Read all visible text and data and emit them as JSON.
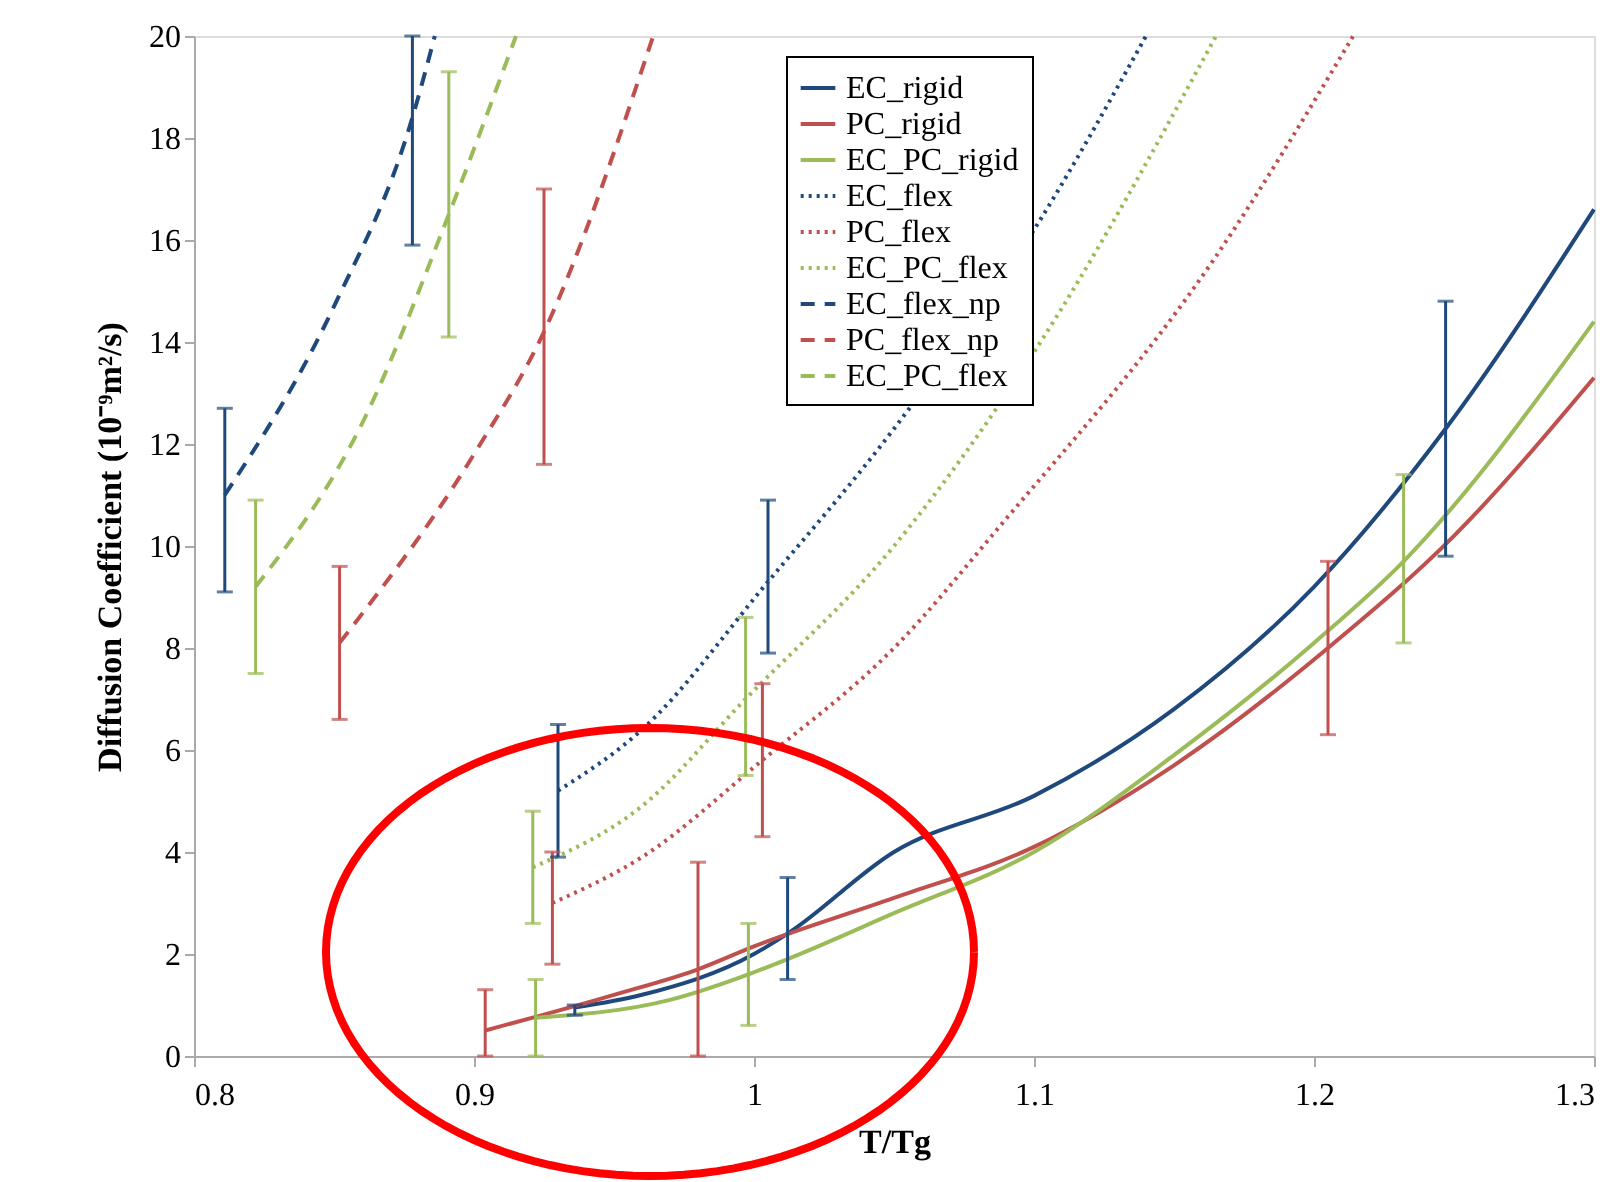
{
  "chart_data": {
    "type": "line",
    "xlabel": "T/Tg",
    "ylabel": "Diffusion Coefficient (10⁻⁹m²/s)",
    "xlim": [
      0.8,
      1.3
    ],
    "xticks": [
      0.8,
      0.9,
      1,
      1.1,
      1.2,
      1.3
    ],
    "ylim": [
      0,
      20
    ],
    "yticks": [
      0,
      2,
      4,
      6,
      8,
      10,
      12,
      14,
      16,
      18,
      20
    ],
    "grid": false,
    "legend": "top right",
    "marker": "none",
    "series": [
      {
        "name": "EC_rigid",
        "color": "#1f497d",
        "line_style": "solid",
        "x": [
          0.936,
          0.96,
          1.0,
          1.012,
          1.05,
          1.1,
          1.15,
          1.2,
          1.247,
          1.3
        ],
        "values": [
          0.95,
          1.2,
          2.0,
          2.4,
          4.0,
          5.1,
          6.8,
          9.2,
          12.3,
          16.6
        ],
        "errors": [
          [
            0.8,
            1.0
          ],
          null,
          null,
          [
            1.5,
            3.5
          ],
          null,
          null,
          null,
          null,
          [
            9.8,
            14.8
          ],
          null
        ]
      },
      {
        "name": "PC_rigid",
        "color": "#c0504d",
        "line_style": "solid",
        "x": [
          0.904,
          0.95,
          0.98,
          1.0,
          1.05,
          1.1,
          1.15,
          1.205,
          1.25,
          1.3
        ],
        "values": [
          0.5,
          1.2,
          1.7,
          2.15,
          3.1,
          4.1,
          5.7,
          8.0,
          10.2,
          13.3
        ],
        "errors": [
          [
            0,
            1.3
          ],
          null,
          [
            0,
            3.8
          ],
          null,
          null,
          null,
          null,
          [
            6.3,
            9.7
          ],
          null,
          null
        ]
      },
      {
        "name": "EC_PC_rigid",
        "color": "#9bbb59",
        "line_style": "solid",
        "x": [
          0.922,
          0.97,
          0.998,
          1.012,
          1.05,
          1.1,
          1.15,
          1.2,
          1.232,
          1.3
        ],
        "values": [
          0.75,
          1.1,
          1.6,
          1.9,
          2.8,
          4.0,
          5.9,
          8.1,
          9.7,
          14.4
        ],
        "errors": [
          [
            0,
            1.5
          ],
          null,
          [
            0.6,
            2.6
          ],
          null,
          null,
          null,
          null,
          null,
          [
            8.1,
            11.4
          ],
          null
        ]
      },
      {
        "name": "EC_flex",
        "color": "#1f497d",
        "line_style": "dotted",
        "x": [
          0.93,
          0.96,
          1.005,
          1.05,
          1.1,
          1.14
        ],
        "values": [
          5.2,
          6.4,
          9.3,
          12.3,
          16.2,
          20
        ],
        "errors": [
          [
            3.9,
            6.5
          ],
          null,
          [
            7.9,
            10.9
          ],
          null,
          null,
          null
        ]
      },
      {
        "name": "PC_flex",
        "color": "#c0504d",
        "line_style": "dotted",
        "x": [
          0.928,
          0.96,
          1.003,
          1.05,
          1.088,
          1.164,
          1.214
        ],
        "values": [
          3.0,
          3.9,
          5.8,
          8.0,
          10.4,
          15.6,
          20
        ],
        "errors": [
          [
            1.8,
            4.0
          ],
          null,
          [
            4.3,
            7.3
          ],
          null,
          null,
          null,
          null
        ]
      },
      {
        "name": "EC_PC_flex",
        "color": "#9bbb59",
        "line_style": "dotted",
        "x": [
          0.921,
          0.96,
          0.997,
          1.05,
          1.1,
          1.165
        ],
        "values": [
          3.7,
          4.9,
          7.0,
          10.0,
          13.8,
          20
        ],
        "errors": [
          [
            2.6,
            4.8
          ],
          null,
          [
            5.5,
            8.6
          ],
          null,
          null,
          null
        ]
      },
      {
        "name": "EC_flex_np",
        "color": "#1f497d",
        "line_style": "dashed",
        "x": [
          0.811,
          0.85,
          0.878,
          0.886
        ],
        "values": [
          11.0,
          14.7,
          18.4,
          20
        ],
        "errors": [
          [
            9.1,
            12.7
          ],
          null,
          [
            15.9,
            20
          ],
          null
        ]
      },
      {
        "name": "PC_flex_np",
        "color": "#c0504d",
        "line_style": "dashed",
        "x": [
          0.852,
          0.9,
          0.925,
          0.964
        ],
        "values": [
          8.1,
          11.8,
          14.2,
          20
        ],
        "errors": [
          [
            6.6,
            9.6
          ],
          null,
          [
            11.6,
            17.0
          ],
          null
        ]
      },
      {
        "name": "EC_PC_flex",
        "color": "#9bbb59",
        "line_style": "dashed",
        "x": [
          0.822,
          0.86,
          0.891,
          0.915
        ],
        "values": [
          9.2,
          12.4,
          16.5,
          20
        ],
        "errors": [
          [
            7.5,
            10.9
          ],
          null,
          [
            14.1,
            19.3
          ],
          null
        ]
      }
    ]
  }
}
